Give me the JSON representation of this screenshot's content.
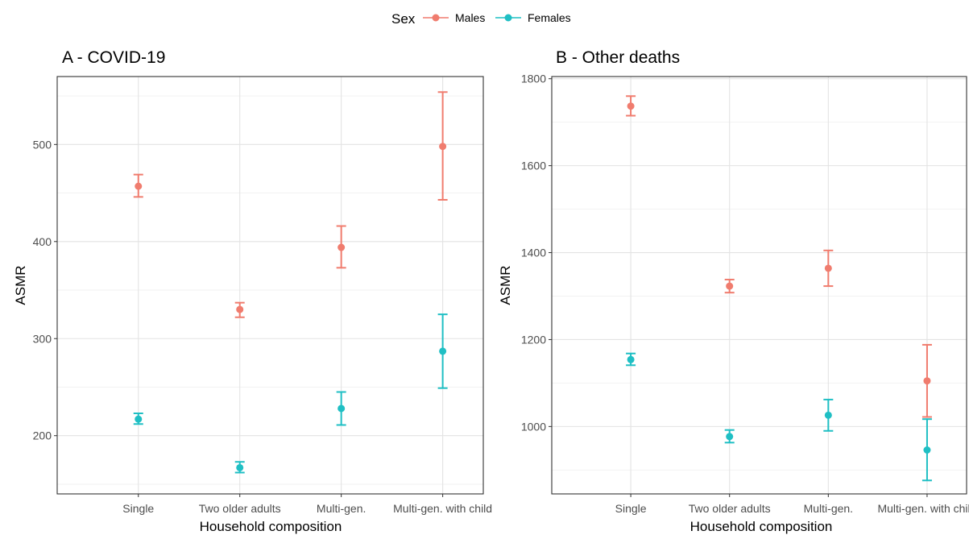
{
  "legend": {
    "title": "Sex",
    "entries": [
      {
        "name": "Males",
        "color": "#F07C6E"
      },
      {
        "name": "Females",
        "color": "#1FBFC4"
      }
    ]
  },
  "chart_data": [
    {
      "type": "scatter",
      "title": "A - COVID-19",
      "xlabel": "Household composition",
      "ylabel": "ASMR",
      "categories": [
        "Single",
        "Two older adults",
        "Multi-gen.",
        "Multi-gen. with child"
      ],
      "ylim": [
        140,
        570
      ],
      "yticks": [
        200,
        300,
        400,
        500
      ],
      "grid": true,
      "series": [
        {
          "name": "Males",
          "color": "#F07C6E",
          "values": [
            457,
            330,
            394,
            498
          ],
          "lower": [
            446,
            322,
            373,
            443
          ],
          "upper": [
            469,
            337,
            416,
            554
          ]
        },
        {
          "name": "Females",
          "color": "#1FBFC4",
          "values": [
            217,
            167,
            228,
            287
          ],
          "lower": [
            212,
            162,
            211,
            249
          ],
          "upper": [
            223,
            173,
            245,
            325
          ]
        }
      ]
    },
    {
      "type": "scatter",
      "title": "B - Other deaths",
      "xlabel": "Household composition",
      "ylabel": "ASMR",
      "categories": [
        "Single",
        "Two older adults",
        "Multi-gen.",
        "Multi-gen. with child"
      ],
      "ylim": [
        845,
        1805
      ],
      "yticks": [
        1000,
        1200,
        1400,
        1600,
        1800
      ],
      "grid": true,
      "series": [
        {
          "name": "Males",
          "color": "#F07C6E",
          "values": [
            1737,
            1323,
            1364,
            1105
          ],
          "lower": [
            1715,
            1308,
            1323,
            1022
          ],
          "upper": [
            1760,
            1338,
            1405,
            1188
          ]
        },
        {
          "name": "Females",
          "color": "#1FBFC4",
          "values": [
            1154,
            977,
            1026,
            946
          ],
          "lower": [
            1141,
            963,
            990,
            876
          ],
          "upper": [
            1168,
            992,
            1062,
            1017
          ]
        }
      ]
    }
  ]
}
